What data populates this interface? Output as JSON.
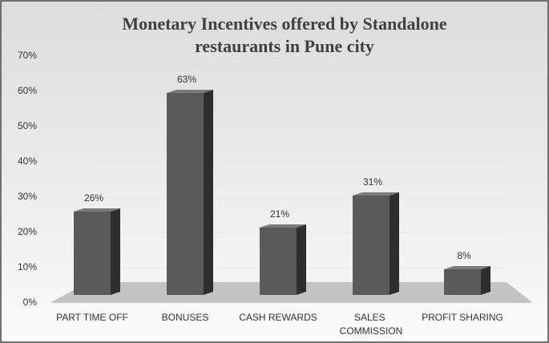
{
  "chart_data": {
    "type": "bar3d",
    "title": "Monetary Incentives offered by Standalone restaurants in Pune city",
    "categories": [
      "PART TIME OFF",
      "BONUSES",
      "CASH REWARDS",
      "SALES COMMISSION",
      "PROFIT SHARING"
    ],
    "values": [
      26,
      63,
      21,
      31,
      8
    ],
    "value_labels": [
      "26%",
      "63%",
      "21%",
      "31%",
      "8%"
    ],
    "color": "#5a5a5a",
    "ylim": [
      0,
      70
    ],
    "yticks": [
      {
        "value": 0,
        "label": "0%"
      },
      {
        "value": 10,
        "label": "10%"
      },
      {
        "value": 20,
        "label": "20%"
      },
      {
        "value": 30,
        "label": "30%"
      },
      {
        "value": 40,
        "label": "40%"
      },
      {
        "value": 50,
        "label": "50%"
      },
      {
        "value": 60,
        "label": "60%"
      },
      {
        "value": 70,
        "label": "70%"
      }
    ],
    "grid": true
  }
}
